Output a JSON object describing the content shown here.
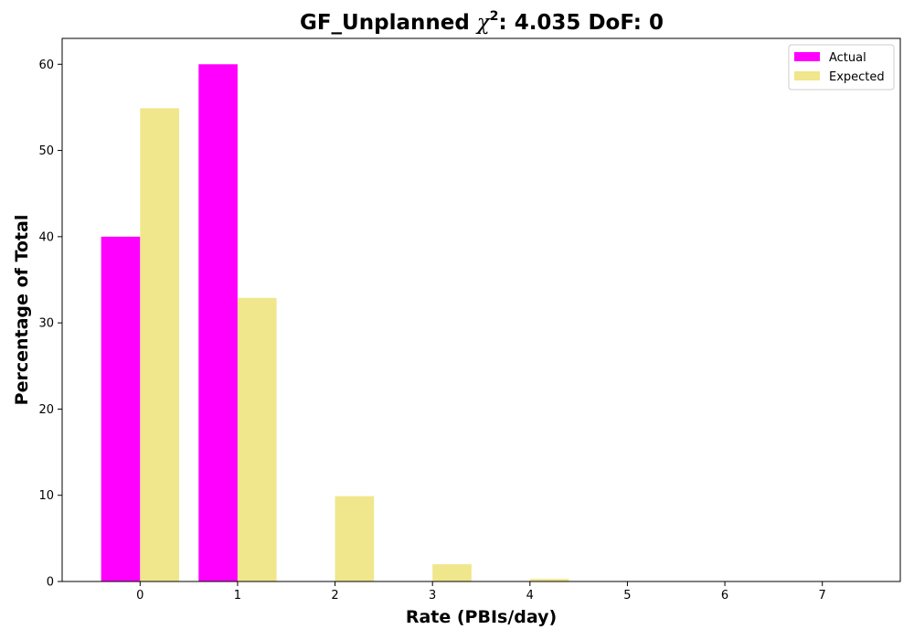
{
  "chart_data": {
    "type": "bar",
    "title_prefix": "GF_Unplanned ",
    "title_chi": "χ",
    "title_sup": "2",
    "title_suffix": ": 4.035 DoF: 0",
    "xlabel": "Rate (PBIs/day)",
    "ylabel": "Percentage of Total",
    "categories": [
      "0",
      "1",
      "2",
      "3",
      "4",
      "5",
      "6",
      "7"
    ],
    "x": [
      0,
      1,
      2,
      3,
      4,
      5,
      6,
      7
    ],
    "xlim": [
      -0.8,
      7.8
    ],
    "ylim": [
      0,
      63
    ],
    "yticks": [
      0,
      10,
      20,
      30,
      40,
      50,
      60
    ],
    "legend_position": "top-right",
    "series": [
      {
        "name": "Actual",
        "color": "#ff00ff",
        "offset": -0.2,
        "values": [
          40,
          60,
          0,
          0,
          0,
          0,
          0,
          0
        ]
      },
      {
        "name": "Expected",
        "color": "#f0e68c",
        "offset": 0.2,
        "values": [
          54.9,
          32.9,
          9.9,
          2.0,
          0.3,
          0.03,
          0.003,
          0.0003
        ]
      }
    ]
  }
}
